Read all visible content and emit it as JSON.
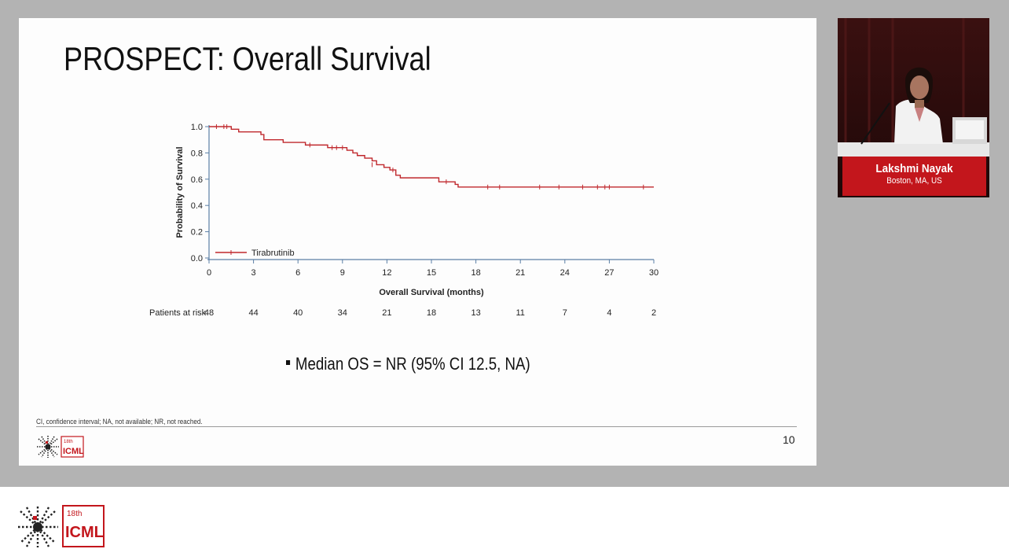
{
  "slide": {
    "title": "PROSPECT: Overall Survival",
    "median_note": "Median OS = NR (95% CI 12.5, NA)",
    "footnote": "CI, confidence interval; NA, not available; NR, not reached.",
    "page_number": "10"
  },
  "chart_data": {
    "type": "line",
    "chart_style": "kaplan-meier step curve with censor ticks",
    "title": "",
    "xlabel": "Overall Survival (months)",
    "ylabel": "Probability of Survival",
    "xlim": [
      0,
      30
    ],
    "ylim": [
      0,
      1.0
    ],
    "x_ticks": [
      0,
      3,
      6,
      9,
      12,
      15,
      18,
      21,
      24,
      27,
      30
    ],
    "y_ticks": [
      "0.0",
      "0.2",
      "0.4",
      "0.6",
      "0.8",
      "1.0"
    ],
    "grid": false,
    "legend_position": "bottom-left",
    "series": [
      {
        "name": "Tirabrutinib",
        "color": "#c0282d",
        "steps": [
          [
            0,
            1.0
          ],
          [
            1.5,
            0.98
          ],
          [
            2,
            0.96
          ],
          [
            3.5,
            0.94
          ],
          [
            3.7,
            0.9
          ],
          [
            5,
            0.88
          ],
          [
            6.5,
            0.86
          ],
          [
            8,
            0.84
          ],
          [
            9.3,
            0.82
          ],
          [
            9.7,
            0.8
          ],
          [
            10,
            0.78
          ],
          [
            10.5,
            0.76
          ],
          [
            11,
            0.74
          ],
          [
            11.3,
            0.71
          ],
          [
            11.8,
            0.69
          ],
          [
            12.2,
            0.67
          ],
          [
            12.6,
            0.63
          ],
          [
            12.9,
            0.61
          ],
          [
            15.5,
            0.58
          ],
          [
            16.6,
            0.56
          ],
          [
            16.8,
            0.54
          ],
          [
            30,
            0.54
          ]
        ],
        "censored": [
          [
            0.5,
            1.0
          ],
          [
            1.0,
            1.0
          ],
          [
            1.2,
            1.0
          ],
          [
            6.8,
            0.86
          ],
          [
            8.3,
            0.84
          ],
          [
            8.6,
            0.84
          ],
          [
            9.0,
            0.84
          ],
          [
            11.0,
            0.71
          ],
          [
            12.4,
            0.67
          ],
          [
            16.0,
            0.58
          ],
          [
            18.8,
            0.54
          ],
          [
            19.6,
            0.54
          ],
          [
            22.3,
            0.54
          ],
          [
            23.6,
            0.54
          ],
          [
            25.2,
            0.54
          ],
          [
            26.2,
            0.54
          ],
          [
            26.7,
            0.54
          ],
          [
            27.0,
            0.54
          ],
          [
            29.3,
            0.54
          ]
        ]
      }
    ],
    "risk_table": {
      "label": "Patients at risk",
      "times": [
        0,
        3,
        6,
        9,
        12,
        15,
        18,
        21,
        24,
        27,
        30
      ],
      "values": [
        "48",
        "44",
        "40",
        "34",
        "21",
        "18",
        "13",
        "11",
        "7",
        "4",
        "2"
      ]
    }
  },
  "speaker": {
    "name": "Lakshmi Nayak",
    "location": "Boston, MA, US"
  },
  "branding": {
    "edition": "18th",
    "name": "ICML",
    "accent_color": "#c3161c"
  }
}
